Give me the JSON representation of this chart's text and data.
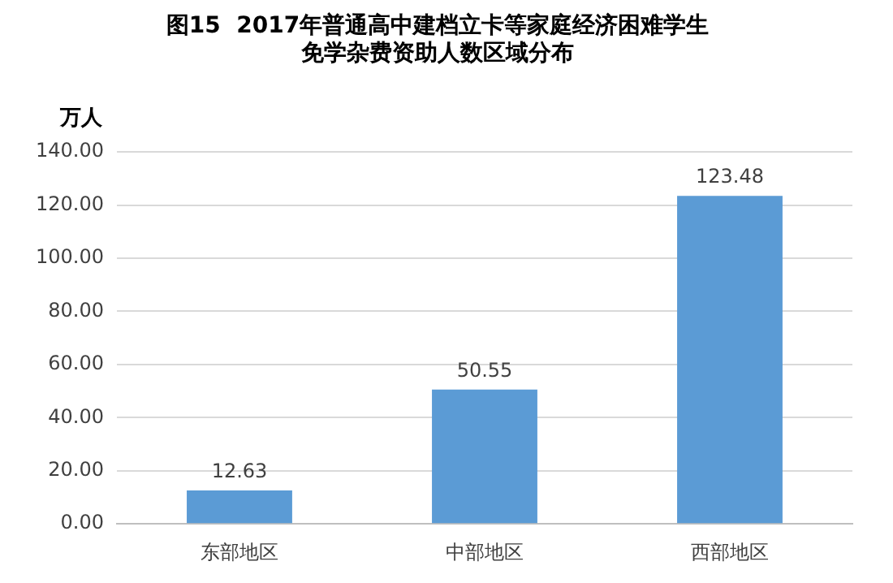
{
  "chart_data": {
    "type": "bar",
    "title": "图15  2017年普通高中建档立卡等家庭经济困难学生免学杂费资助人数区域分布",
    "ylabel": "万人",
    "categories": [
      "东部地区",
      "中部地区",
      "西部地区"
    ],
    "values": [
      12.63,
      50.55,
      123.48
    ],
    "color": "#5b9bd5",
    "ylim": [
      0,
      140
    ],
    "yticks": [
      {
        "value": 0,
        "label": "0.00"
      },
      {
        "value": 20,
        "label": "20.00"
      },
      {
        "value": 40,
        "label": "40.00"
      },
      {
        "value": 60,
        "label": "60.00"
      },
      {
        "value": 80,
        "label": "80.00"
      },
      {
        "value": 100,
        "label": "100.00"
      },
      {
        "value": 120,
        "label": "120.00"
      },
      {
        "value": 140,
        "label": "140.00"
      }
    ],
    "grid": "y",
    "data_labels": true,
    "legend": false
  }
}
